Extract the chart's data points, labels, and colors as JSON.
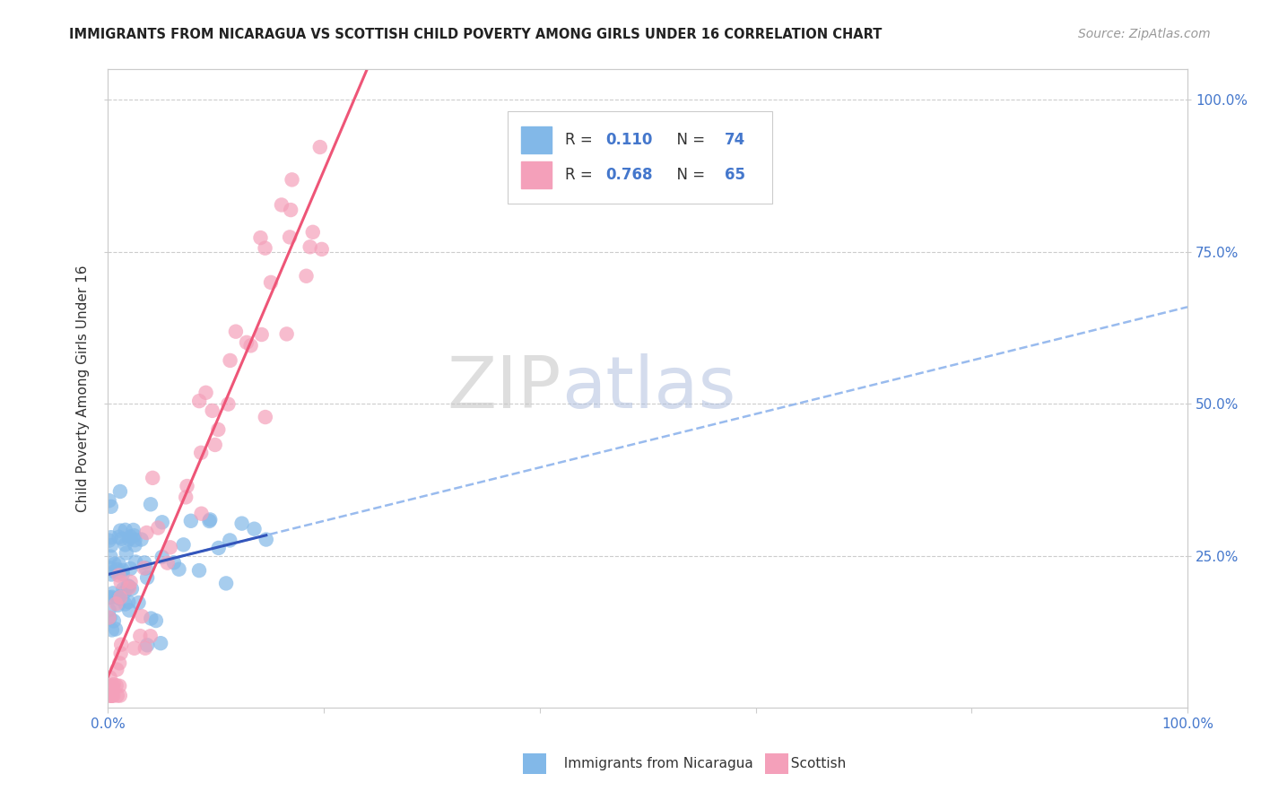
{
  "title": "IMMIGRANTS FROM NICARAGUA VS SCOTTISH CHILD POVERTY AMONG GIRLS UNDER 16 CORRELATION CHART",
  "source": "Source: ZipAtlas.com",
  "ylabel": "Child Poverty Among Girls Under 16",
  "watermark_zip": "ZIP",
  "watermark_atlas": "atlas",
  "blue_color": "#82B8E8",
  "pink_color": "#F4A0BA",
  "blue_line_color": "#3355BB",
  "pink_line_color": "#EE5577",
  "blue_dashed_color": "#99BBEE",
  "axis_tick_color": "#4477CC",
  "grid_color": "#CCCCCC",
  "title_color": "#222222",
  "source_color": "#999999",
  "xlim": [
    0,
    100
  ],
  "ylim": [
    0,
    105
  ],
  "yticks": [
    25,
    50,
    75,
    100
  ],
  "ytick_labels": [
    "25.0%",
    "50.0%",
    "75.0%",
    "100.0%"
  ],
  "xtick_labels_show": [
    "0.0%",
    "100.0%"
  ],
  "legend_r1": "R = ",
  "legend_v1": "0.110",
  "legend_n1_label": "N = ",
  "legend_n1": "74",
  "legend_r2": "R = ",
  "legend_v2": "0.768",
  "legend_n2_label": "N = ",
  "legend_n2": "65",
  "blue_seed": 12345,
  "pink_seed": 67890,
  "n_blue": 74,
  "n_pink": 65
}
